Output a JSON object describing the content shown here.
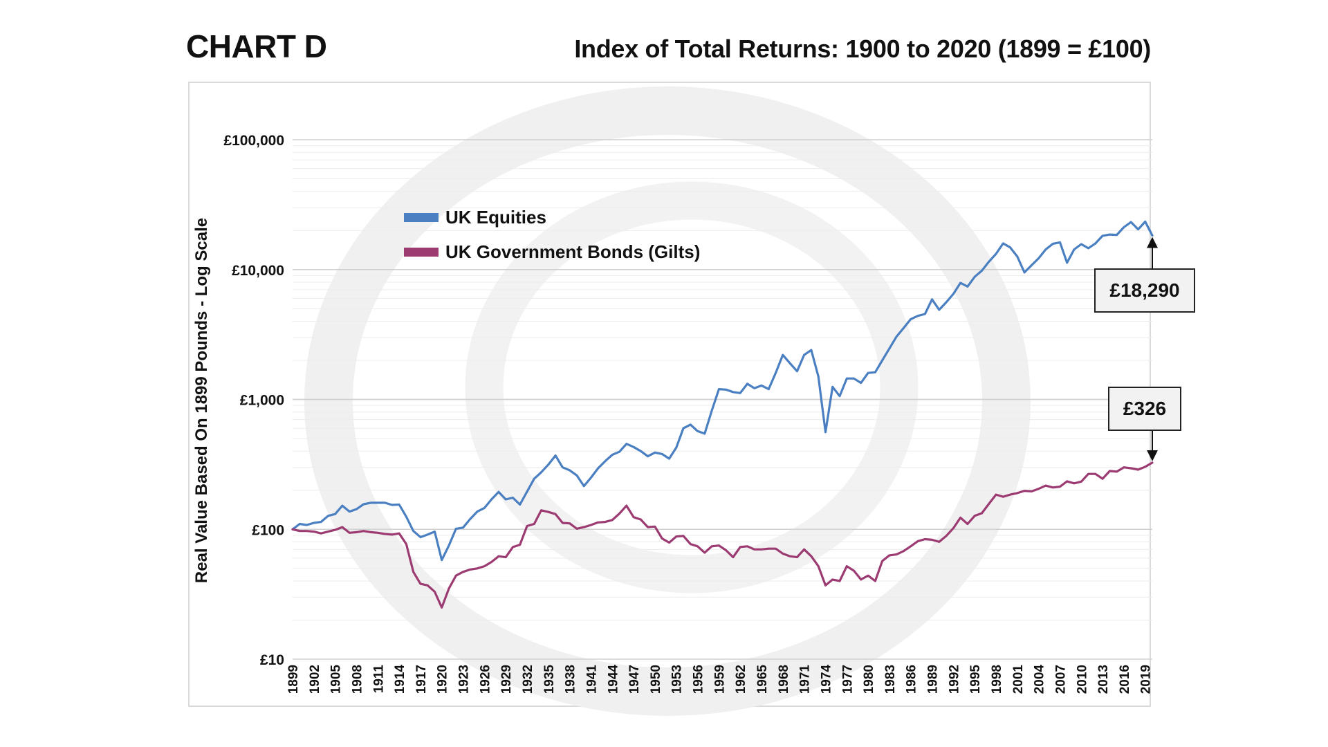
{
  "chart_label": "CHART D",
  "chart_data": {
    "type": "line",
    "title": "Index of Total Returns: 1900 to 2020 (1899 = £100)",
    "ylabel": "Real Value  Based On 1899 Pounds - Log Scale",
    "xlabel": "",
    "yscale": "log",
    "ylim": [
      10,
      100000
    ],
    "yticks": [
      10,
      100,
      1000,
      10000,
      100000
    ],
    "ytick_labels": [
      "£10",
      "£100",
      "£1,000",
      "£10,000",
      "£100,000"
    ],
    "grid": true,
    "legend_position": "upper-left inside",
    "x": [
      1899,
      1900,
      1901,
      1902,
      1903,
      1904,
      1905,
      1906,
      1907,
      1908,
      1909,
      1910,
      1911,
      1912,
      1913,
      1914,
      1915,
      1916,
      1917,
      1918,
      1919,
      1920,
      1921,
      1922,
      1923,
      1924,
      1925,
      1926,
      1927,
      1928,
      1929,
      1930,
      1931,
      1932,
      1933,
      1934,
      1935,
      1936,
      1937,
      1938,
      1939,
      1940,
      1941,
      1942,
      1943,
      1944,
      1945,
      1946,
      1947,
      1948,
      1949,
      1950,
      1951,
      1952,
      1953,
      1954,
      1955,
      1956,
      1957,
      1958,
      1959,
      1960,
      1961,
      1962,
      1963,
      1964,
      1965,
      1966,
      1967,
      1968,
      1969,
      1970,
      1971,
      1972,
      1973,
      1974,
      1975,
      1976,
      1977,
      1978,
      1979,
      1980,
      1981,
      1982,
      1983,
      1984,
      1985,
      1986,
      1987,
      1988,
      1989,
      1990,
      1991,
      1992,
      1993,
      1994,
      1995,
      1996,
      1997,
      1998,
      1999,
      2000,
      2001,
      2002,
      2003,
      2004,
      2005,
      2006,
      2007,
      2008,
      2009,
      2010,
      2011,
      2012,
      2013,
      2014,
      2015,
      2016,
      2017,
      2018,
      2019,
      2020
    ],
    "x_tick_labels": [
      "1899",
      "1902",
      "1905",
      "1908",
      "1911",
      "1914",
      "1917",
      "1920",
      "1923",
      "1926",
      "1929",
      "1932",
      "1935",
      "1938",
      "1941",
      "1944",
      "1947",
      "1950",
      "1953",
      "1956",
      "1959",
      "1962",
      "1965",
      "1968",
      "1971",
      "1974",
      "1977",
      "1980",
      "1983",
      "1986",
      "1989",
      "1992",
      "1995",
      "1998",
      "2001",
      "2004",
      "2007",
      "2010",
      "2013",
      "2016",
      "2019"
    ],
    "series": [
      {
        "name": "UK Equities",
        "color": "#4a7fc1",
        "values": [
          100,
          110,
          108,
          112,
          114,
          127,
          131,
          152,
          137,
          143,
          156,
          160,
          160,
          160,
          154,
          155,
          125,
          97,
          87,
          91,
          96,
          58,
          75,
          101,
          103,
          120,
          137,
          146,
          170,
          194,
          170,
          175,
          155,
          195,
          245,
          275,
          315,
          370,
          300,
          285,
          260,
          215,
          250,
          295,
          335,
          375,
          395,
          455,
          430,
          400,
          365,
          390,
          380,
          350,
          425,
          600,
          640,
          570,
          545,
          820,
          1200,
          1190,
          1140,
          1120,
          1320,
          1220,
          1280,
          1200,
          1600,
          2200,
          1900,
          1650,
          2200,
          2400,
          1500,
          560,
          1250,
          1060,
          1450,
          1450,
          1340,
          1600,
          1620,
          2000,
          2470,
          3050,
          3550,
          4150,
          4400,
          4550,
          5900,
          4900,
          5600,
          6500,
          7900,
          7400,
          8800,
          9800,
          11500,
          13200,
          15900,
          14800,
          12600,
          9500,
          10800,
          12200,
          14300,
          15800,
          16200,
          11300,
          14300,
          15700,
          14600,
          15900,
          18200,
          18600,
          18500,
          21200,
          23200,
          20400,
          23400,
          18290
        ]
      },
      {
        "name": "UK Government Bonds (Gilts)",
        "color": "#9c3a72",
        "values": [
          100,
          97,
          97,
          96,
          93,
          96,
          99,
          104,
          94,
          95,
          97,
          95,
          94,
          92,
          91,
          93,
          77,
          47,
          38,
          37,
          33,
          25,
          35,
          44,
          47,
          49,
          50,
          52,
          56,
          62,
          61,
          73,
          76,
          106,
          110,
          140,
          136,
          131,
          112,
          111,
          101,
          104,
          108,
          113,
          114,
          118,
          132,
          152,
          124,
          119,
          104,
          105,
          85,
          79,
          88,
          89,
          77,
          74,
          66,
          74,
          75,
          69,
          61,
          73,
          74,
          70,
          70,
          71,
          71,
          65,
          62,
          61,
          70,
          62,
          52,
          37,
          41,
          40,
          52,
          48,
          41,
          44,
          40,
          57,
          63,
          64,
          68,
          74,
          81,
          84,
          83,
          80,
          89,
          102,
          123,
          110,
          127,
          133,
          157,
          185,
          178,
          185,
          190,
          198,
          196,
          205,
          217,
          210,
          213,
          234,
          226,
          233,
          267,
          267,
          245,
          281,
          278,
          300,
          295,
          288,
          303,
          326
        ]
      }
    ],
    "callouts": [
      {
        "series": "UK Equities",
        "year": 2020,
        "label": "£18,290",
        "position": "below"
      },
      {
        "series": "UK Government Bonds (Gilts)",
        "year": 2020,
        "label": "£326",
        "position": "above"
      }
    ]
  }
}
